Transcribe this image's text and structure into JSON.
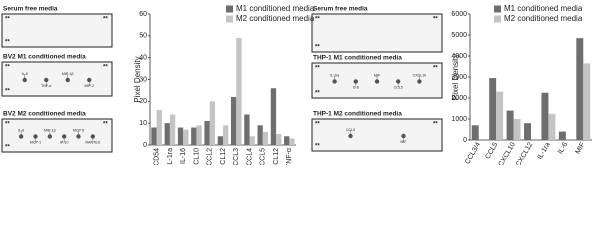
{
  "blots": [
    {
      "title": "Serum free media",
      "labels": []
    },
    {
      "title": "BV2 M1 conditioned media",
      "labels": [
        "IL-6",
        "TNF-α",
        "MIP-1β",
        "MIP-2"
      ]
    },
    {
      "title": "BV2 M2 conditioned media",
      "labels": [
        "IL-6",
        "MCP-1",
        "MIP-1β",
        "IP-10",
        "MCP-5",
        "RANTES"
      ]
    },
    {
      "title": "Serum free media",
      "labels": []
    },
    {
      "title": "THP-1 M1 conditioned media",
      "labels": [
        "IL-1ra",
        "IL-6",
        "MIF",
        "CCL5",
        "CXCL10"
      ]
    },
    {
      "title": "THP-1 M2 conditioned media",
      "labels": [
        "CCL5",
        "MIF"
      ]
    }
  ],
  "marker": "**",
  "chart_data": [
    {
      "type": "bar",
      "y_label": "Pixel Density",
      "categories": [
        "CD54",
        "IL-1ra",
        "IL-16",
        "CXCL10",
        "CCL2",
        "CCL12",
        "CCL3",
        "CCL4",
        "CCL5",
        "CXCL12",
        "TNF-α"
      ],
      "series": [
        {
          "name": "M1 conditioned media",
          "color": "#6e6e6e",
          "values": [
            8,
            10,
            8,
            8,
            11,
            4,
            22,
            14,
            9,
            26,
            4
          ]
        },
        {
          "name": "M2 conditioned media",
          "color": "#c4c4c4",
          "values": [
            16,
            14,
            7,
            9,
            20,
            9,
            49,
            4,
            6,
            5,
            3
          ]
        }
      ],
      "ylim": [
        0,
        60
      ],
      "yticks": [
        0,
        10,
        20,
        30,
        40,
        50,
        60
      ]
    },
    {
      "type": "bar",
      "y_label": "Pixel Density",
      "categories": [
        "CCL3/4",
        "CCL5",
        "CXCL10",
        "CXCL12",
        "IL-1ra",
        "IL-6",
        "MIF"
      ],
      "series": [
        {
          "name": "M1 conditioned media",
          "color": "#6e6e6e",
          "values": [
            700,
            2950,
            1400,
            800,
            2250,
            400,
            4850
          ]
        },
        {
          "name": "M2 conditioned media",
          "color": "#c4c4c4",
          "values": [
            0,
            2300,
            1000,
            0,
            1250,
            0,
            3650
          ]
        }
      ],
      "ylim": [
        0,
        6000
      ],
      "yticks": [
        0,
        1000,
        2000,
        3000,
        4000,
        5000,
        6000
      ]
    }
  ]
}
